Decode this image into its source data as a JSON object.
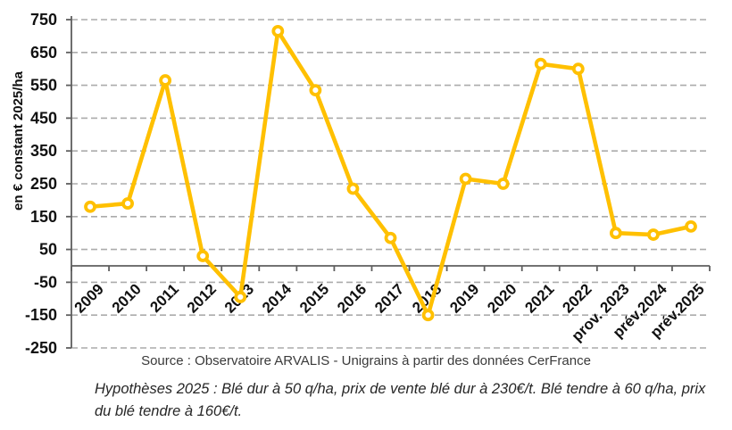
{
  "chart_data": {
    "type": "line",
    "title": "",
    "ylabel": "en € constant 2025/ha",
    "xlabel": "",
    "categories": [
      "2009",
      "2010",
      "2011",
      "2012",
      "2013",
      "2014",
      "2015",
      "2016",
      "2017",
      "2018",
      "2019",
      "2020",
      "2021",
      "2022",
      "prov. 2023",
      "prév.2024",
      "prév.2025"
    ],
    "values": [
      180,
      190,
      565,
      30,
      -95,
      715,
      535,
      235,
      85,
      -150,
      265,
      250,
      615,
      600,
      100,
      95,
      120
    ],
    "ylim": [
      -250,
      750
    ],
    "ytick_step": 100,
    "yticks": [
      750,
      650,
      550,
      450,
      350,
      250,
      150,
      50,
      -50,
      -150,
      -250
    ],
    "grid": "horizontal-dashed",
    "legend_position": "none",
    "line_color": "#FFC000",
    "marker_fill": "#FFFFFF",
    "grid_color": "#ABABAB",
    "axis_color": "#5E5E5E",
    "label_color": "#111111"
  },
  "footer": {
    "source": "Source : Observatoire ARVALIS - Unigrains à partir des données CerFrance",
    "hypothesis": "Hypothèses 2025 : Blé dur à 50 q/ha, prix de vente blé dur à 230€/t. Blé tendre à 60 q/ha, prix du blé tendre à 160€/t."
  }
}
